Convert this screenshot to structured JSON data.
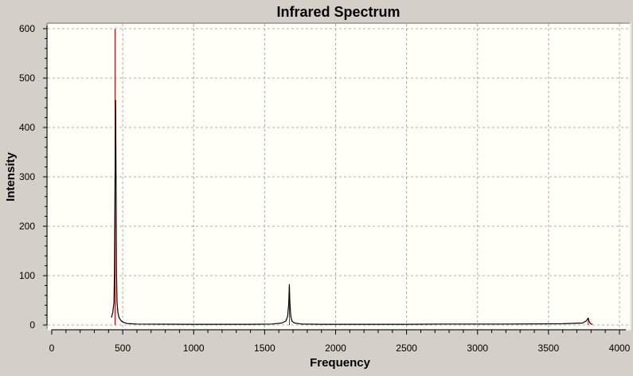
{
  "chart_data": {
    "type": "line",
    "title": "Infrared Spectrum",
    "xlabel": "Frequency",
    "ylabel": "Intensity",
    "xlim": [
      0,
      4000
    ],
    "ylim": [
      0,
      600
    ],
    "x_ticks": [
      0,
      500,
      1000,
      1500,
      2000,
      2500,
      3000,
      3500,
      4000
    ],
    "y_ticks": [
      0,
      100,
      200,
      300,
      400,
      500,
      600
    ],
    "grid": true,
    "background_color": "#fffff8",
    "frame_color": "#d4d0c8",
    "series": [
      {
        "kind": "spectrum",
        "color": "#000000",
        "x": [
          420,
          430,
          438,
          442,
          446,
          450,
          453,
          456,
          460,
          466,
          474,
          485,
          500,
          530,
          600,
          1000,
          1400,
          1550,
          1620,
          1650,
          1662,
          1670,
          1674,
          1678,
          1684,
          1692,
          1710,
          1760,
          1900,
          2500,
          2760,
          3200,
          3600,
          3740,
          3765,
          3775,
          3780,
          3785,
          3795,
          3810
        ],
        "y": [
          15,
          25,
          45,
          110,
          300,
          455,
          310,
          110,
          45,
          25,
          15,
          10,
          6,
          3,
          2,
          1.5,
          1.5,
          2,
          4,
          8,
          18,
          45,
          82,
          45,
          18,
          8,
          4,
          2,
          1.5,
          1.5,
          2,
          2,
          2.5,
          4,
          8,
          12,
          14,
          8,
          3,
          1
        ]
      }
    ],
    "stick_lines": {
      "color": "#cc0000",
      "x": [
        446,
        1675,
        3780
      ],
      "y": [
        600,
        55,
        14
      ]
    }
  }
}
